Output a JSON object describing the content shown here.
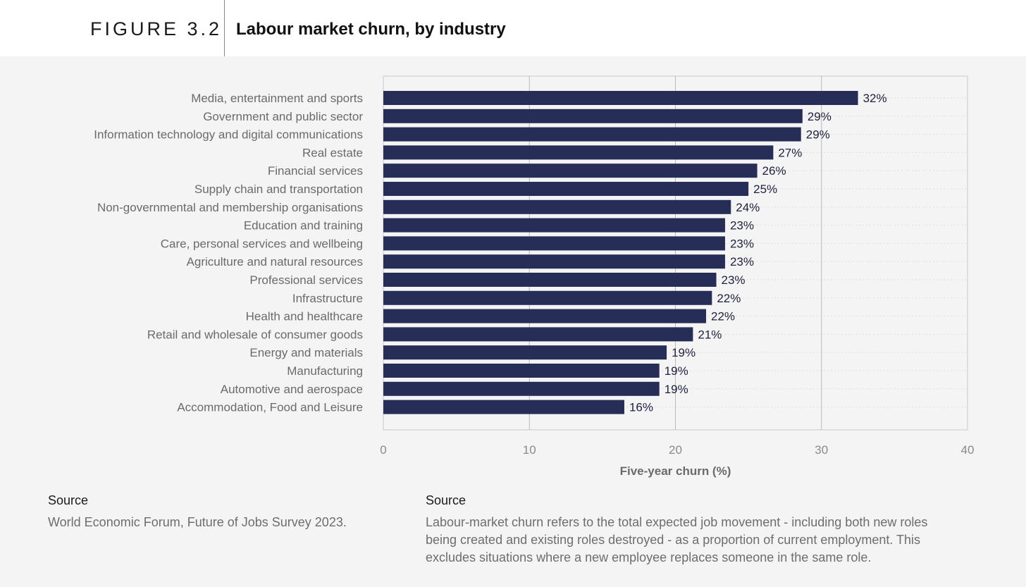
{
  "header": {
    "figure_label": "FIGURE 3.2",
    "title": "Labour market churn, by industry"
  },
  "chart_data": {
    "type": "bar",
    "orientation": "horizontal",
    "categories": [
      "Media, entertainment and sports",
      "Government and public sector",
      "Information technology and digital communications",
      "Real estate",
      "Financial services",
      "Supply chain and transportation",
      "Non-governmental and membership organisations",
      "Education and training",
      "Care, personal services and wellbeing",
      "Agriculture and natural resources",
      "Professional services",
      "Infrastructure",
      "Health and healthcare",
      "Retail and wholesale of consumer goods",
      "Energy and materials",
      "Manufacturing",
      "Automotive and aerospace",
      "Accommodation, Food and Leisure"
    ],
    "values": [
      32.5,
      28.7,
      28.6,
      26.7,
      25.6,
      25.0,
      23.8,
      23.4,
      23.4,
      23.4,
      22.8,
      22.5,
      22.1,
      21.2,
      19.4,
      18.9,
      18.9,
      16.5
    ],
    "data_labels": [
      "32%",
      "29%",
      "29%",
      "27%",
      "26%",
      "25%",
      "24%",
      "23%",
      "23%",
      "23%",
      "23%",
      "22%",
      "22%",
      "21%",
      "19%",
      "19%",
      "19%",
      "16%"
    ],
    "xlabel": "Five-year churn (%)",
    "xlim": [
      0,
      40
    ],
    "xticks": [
      0,
      10,
      20,
      30,
      40
    ],
    "grid": "vertical",
    "bar_color": "#262d57"
  },
  "sources": [
    {
      "heading": "Source",
      "text": "World Economic Forum, Future of Jobs Survey 2023."
    },
    {
      "heading": "Source",
      "text": "Labour-market churn refers to the total expected job movement - including both new roles being created and existing roles destroyed - as a proportion of current employment. This excludes situations where a new employee replaces someone in the same role."
    }
  ]
}
